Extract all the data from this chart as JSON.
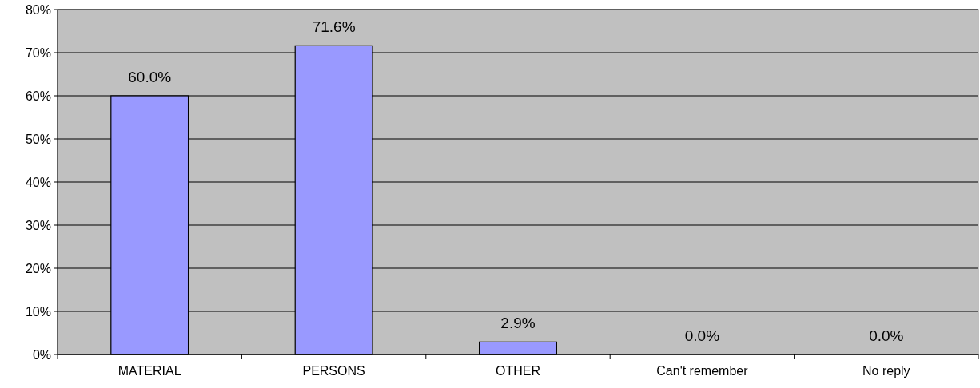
{
  "chart_data": {
    "type": "bar",
    "categories": [
      "MATERIAL",
      "PERSONS",
      "OTHER",
      "Can't remember",
      "No reply"
    ],
    "values": [
      60.0,
      71.6,
      2.9,
      0.0,
      0.0
    ],
    "value_labels": [
      "60.0%",
      "71.6%",
      "2.9%",
      "0.0%",
      "0.0%"
    ],
    "color": "#9999ff",
    "ylim": [
      0,
      80
    ],
    "yticks": [
      {
        "value": 0,
        "label": "0%"
      },
      {
        "value": 10,
        "label": "10%"
      },
      {
        "value": 20,
        "label": "20%"
      },
      {
        "value": 30,
        "label": "30%"
      },
      {
        "value": 40,
        "label": "40%"
      },
      {
        "value": 50,
        "label": "50%"
      },
      {
        "value": 60,
        "label": "60%"
      },
      {
        "value": 70,
        "label": "70%"
      },
      {
        "value": 80,
        "label": "80%"
      }
    ],
    "grid": "y"
  }
}
